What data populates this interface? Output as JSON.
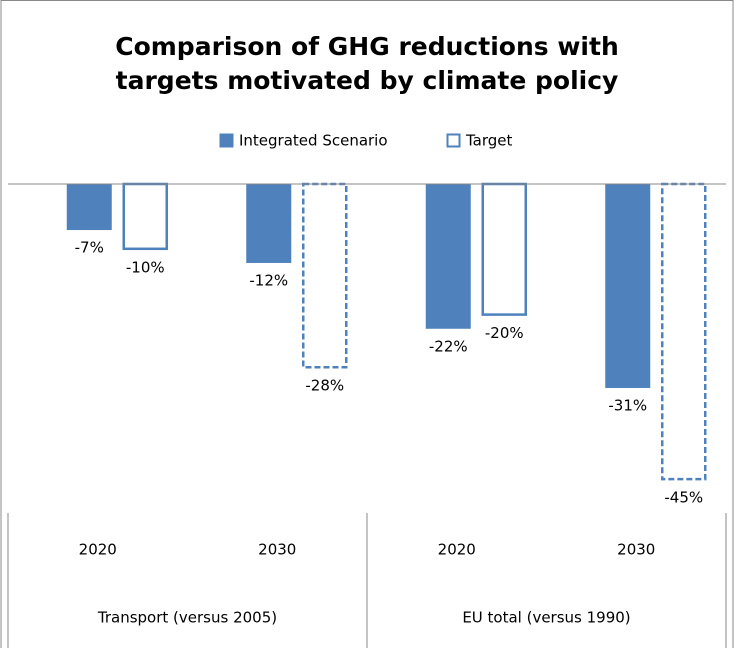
{
  "chart_data": {
    "type": "bar",
    "title": [
      "Comparison of GHG reductions with",
      "targets motivated by climate policy"
    ],
    "categories": [
      "2020",
      "2030",
      "2020",
      "2030"
    ],
    "groups": [
      "Transport (versus 2005)",
      "EU total (versus 1990)"
    ],
    "series": [
      {
        "name": "Integrated Scenario",
        "color": "#4f81bd",
        "fill": true,
        "values": [
          -7,
          -12,
          -22,
          -31
        ],
        "value_labels": [
          "-7%",
          "-12%",
          "-22%",
          "-31%"
        ]
      },
      {
        "name": "Target",
        "color": "#4f81bd",
        "fill": false,
        "dashed": [
          false,
          true,
          false,
          true
        ],
        "values": [
          -10,
          -28,
          -20,
          -45
        ],
        "value_labels": [
          "-10%",
          "-28%",
          "-20%",
          "-45%"
        ]
      }
    ],
    "ylim": [
      -50,
      0
    ]
  }
}
